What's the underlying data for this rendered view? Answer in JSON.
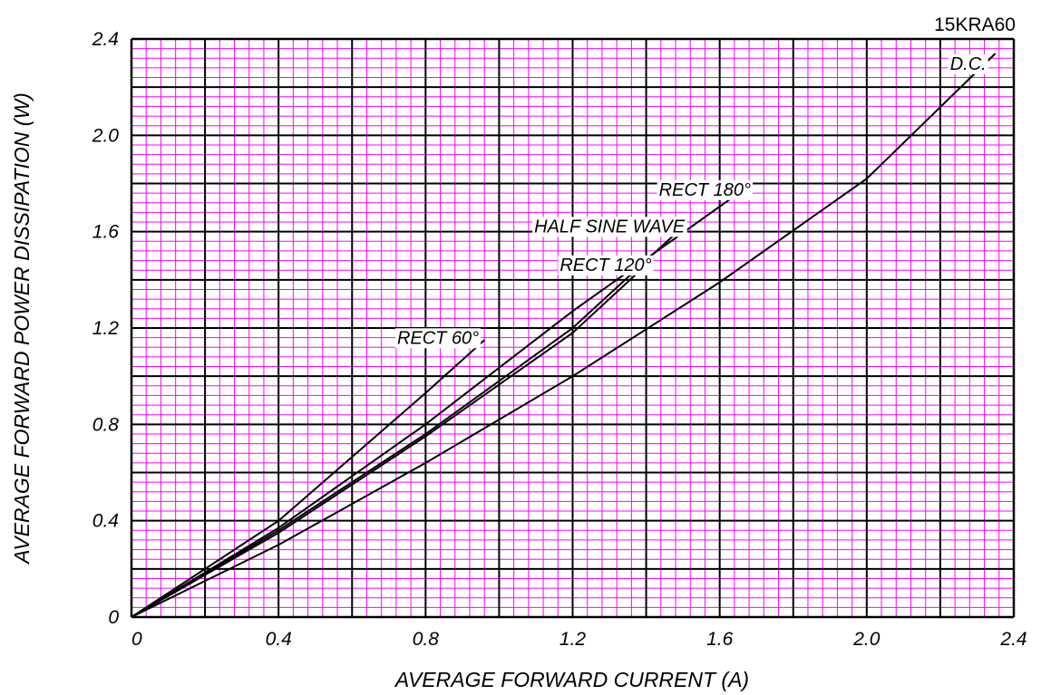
{
  "chart_data": {
    "type": "line",
    "part_number": "15KRA60",
    "xlabel": "AVERAGE FORWARD CURRENT (A)",
    "ylabel": "AVERAGE FORWARD POWER DISSIPATION (W)",
    "xlim": [
      0,
      2.4
    ],
    "ylim": [
      0,
      2.4
    ],
    "x_ticks": [
      "0",
      "0.4",
      "0.8",
      "1.2",
      "1.6",
      "2.0",
      "2.4"
    ],
    "y_ticks": [
      "0",
      "0.4",
      "0.8",
      "1.2",
      "1.6",
      "2.0",
      "2.4"
    ],
    "grid": {
      "major": 0.2,
      "minor": 0.04,
      "major_color": "#000000",
      "minor_color": "#ff00ff",
      "background": "#ffffff"
    },
    "series": [
      {
        "name": "D.C.",
        "x": [
          0,
          0.4,
          0.8,
          1.2,
          1.6,
          2.0,
          2.35
        ],
        "y": [
          0,
          0.3,
          0.64,
          1.0,
          1.39,
          1.82,
          2.34
        ]
      },
      {
        "name": "RECT 120°",
        "x": [
          0,
          0.4,
          0.8,
          1.2,
          1.42
        ],
        "y": [
          0,
          0.35,
          0.75,
          1.18,
          1.49
        ]
      },
      {
        "name": "HALF SINE WAVE",
        "x": [
          0,
          0.4,
          0.8,
          1.2,
          1.5
        ],
        "y": [
          0,
          0.36,
          0.76,
          1.2,
          1.62
        ]
      },
      {
        "name": "RECT 180°",
        "x": [
          0,
          0.4,
          0.8,
          1.2,
          1.67
        ],
        "y": [
          0,
          0.37,
          0.8,
          1.27,
          1.78
        ]
      },
      {
        "name": "RECT 60°",
        "x": [
          0,
          0.4,
          0.8,
          0.96
        ],
        "y": [
          0,
          0.4,
          0.93,
          1.15
        ]
      }
    ]
  }
}
